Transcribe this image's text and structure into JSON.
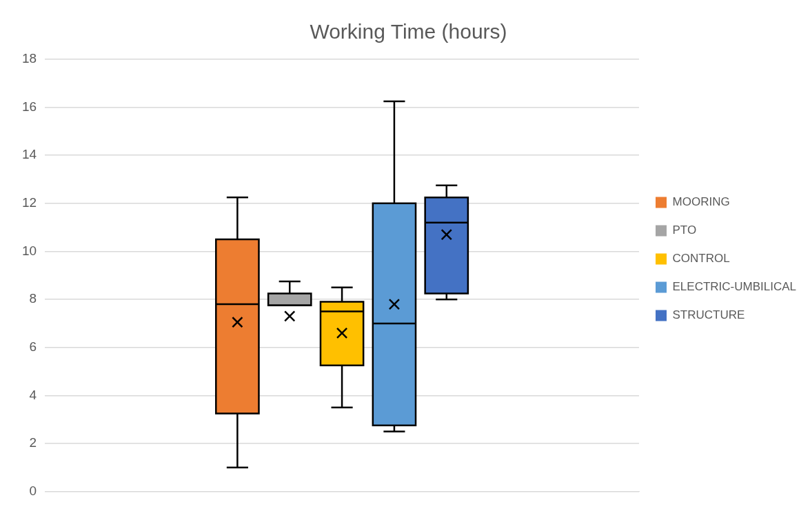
{
  "chart_data": {
    "type": "box",
    "title": "Working Time (hours)",
    "categories": [
      null
    ],
    "series": [
      {
        "name": "MOORING",
        "color": "#ed7d31",
        "boxes": [
          {
            "low": 1.0,
            "q1": 3.25,
            "median": 7.8,
            "q3": 10.5,
            "high": 12.25,
            "mean": 7.05
          }
        ]
      },
      {
        "name": "PTO",
        "color": "#a5a5a5",
        "boxes": [
          {
            "low": 7.75,
            "q1": 7.75,
            "median": 7.75,
            "q3": 8.25,
            "high": 8.75,
            "mean": 7.3
          }
        ]
      },
      {
        "name": "CONTROL",
        "color": "#ffc000",
        "boxes": [
          {
            "low": 3.5,
            "q1": 5.25,
            "median": 7.5,
            "q3": 7.9,
            "high": 8.5,
            "mean": 6.6
          }
        ]
      },
      {
        "name": "ELECTRIC-UMBILICAL",
        "color": "#5b9bd5",
        "boxes": [
          {
            "low": 2.5,
            "q1": 2.75,
            "median": 7.0,
            "q3": 12.0,
            "high": 16.25,
            "mean": 7.8
          }
        ]
      },
      {
        "name": "STRUCTURE",
        "color": "#4472c4",
        "boxes": [
          {
            "low": 8.0,
            "q1": 8.25,
            "median": 11.2,
            "q3": 12.25,
            "high": 12.75,
            "mean": 10.7
          }
        ]
      }
    ],
    "ylim": [
      0,
      18
    ],
    "yticks": [
      0,
      2,
      4,
      6,
      8,
      10,
      12,
      14,
      16,
      18
    ],
    "grid": "y",
    "legend": "right"
  }
}
